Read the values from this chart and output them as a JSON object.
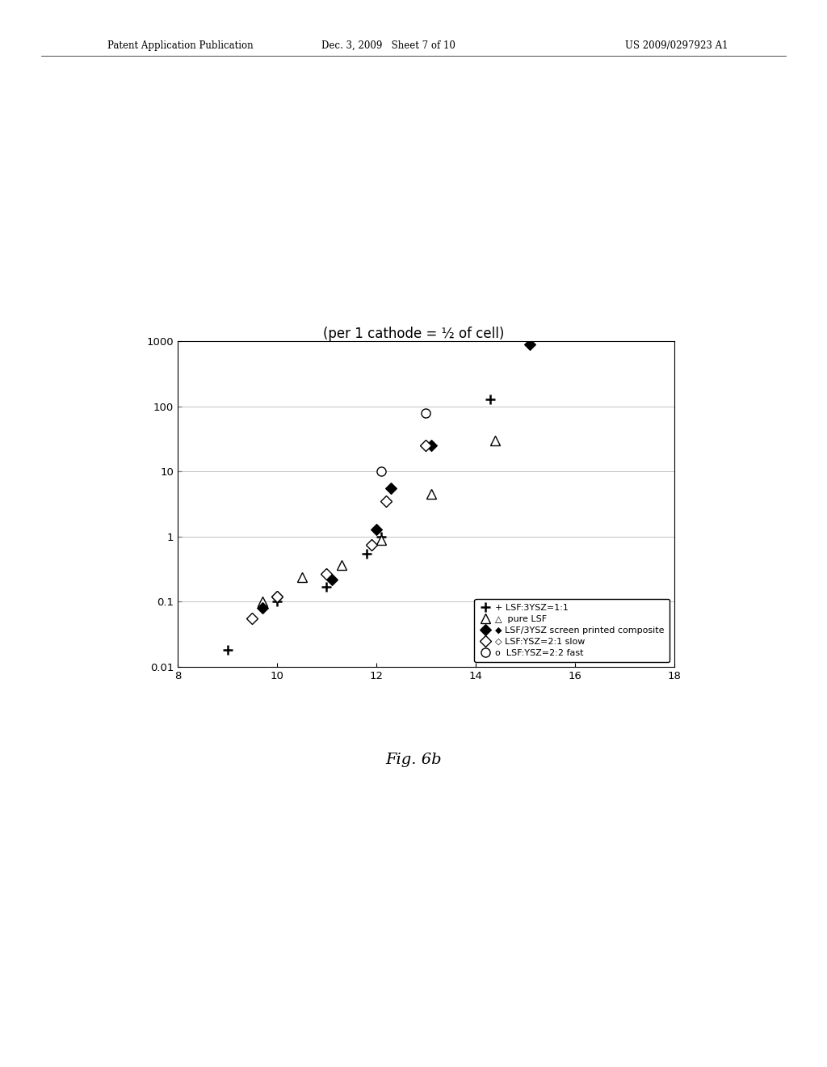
{
  "title_above": "(per 1 cathode = ½ of cell)",
  "fig_label": "Fig. 6b",
  "header_left": "Patent Application Publication",
  "header_mid": "Dec. 3, 2009   Sheet 7 of 10",
  "header_right": "US 2009/0297923 A1",
  "xlim": [
    8,
    18
  ],
  "ylim_log": [
    0.01,
    1000
  ],
  "xticks": [
    8,
    10,
    12,
    14,
    16,
    18
  ],
  "series": {
    "LSF:3YSZ=1:1": {
      "marker": "+",
      "filled": false,
      "x": [
        9.0,
        10.0,
        11.0,
        11.8,
        12.1,
        14.3
      ],
      "y": [
        0.018,
        0.1,
        0.17,
        0.55,
        1.0,
        130
      ]
    },
    "pure LSF": {
      "marker": "^",
      "filled": false,
      "x": [
        9.7,
        10.5,
        11.3,
        12.1,
        13.1,
        14.4
      ],
      "y": [
        0.1,
        0.24,
        0.37,
        0.9,
        4.5,
        30
      ]
    },
    "LSF/3YSZ screen printed composite": {
      "marker": "D",
      "filled": true,
      "x": [
        9.7,
        10.0,
        11.1,
        12.0,
        12.3,
        13.1,
        15.1
      ],
      "y": [
        0.08,
        0.12,
        0.22,
        1.3,
        5.5,
        25,
        900
      ]
    },
    "LSF:YSZ=2:1 slow": {
      "marker": "D",
      "filled": false,
      "x": [
        9.5,
        10.0,
        11.0,
        11.9,
        12.2,
        13.0
      ],
      "y": [
        0.055,
        0.12,
        0.27,
        0.75,
        3.5,
        25
      ]
    },
    "LSF:YSZ=2:2 fast": {
      "marker": "o",
      "filled": false,
      "x": [
        12.1,
        13.0
      ],
      "y": [
        10,
        80
      ]
    }
  },
  "legend_entries": [
    "+ LSF:3YSZ=1:1",
    "△  pure LSF",
    "◆ LSF/3YSZ screen printed composite",
    "◇ LSF:YSZ=2:1 slow",
    "o  LSF:YSZ=2:2 fast"
  ]
}
